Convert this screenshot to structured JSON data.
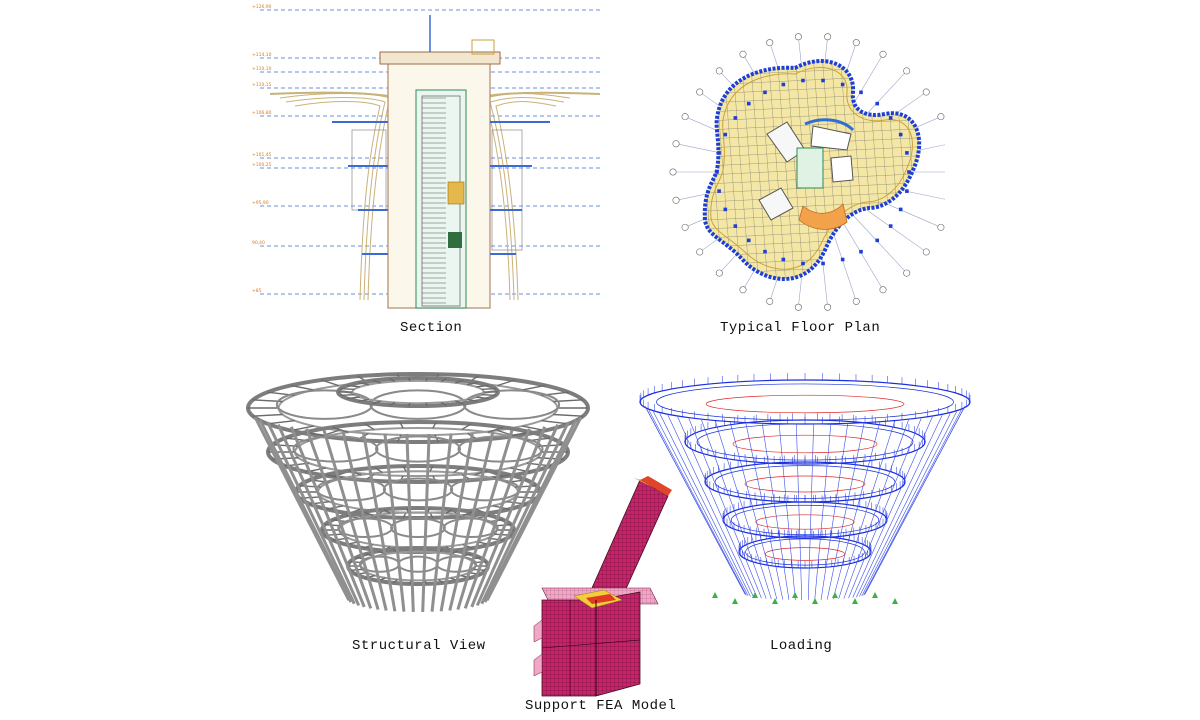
{
  "figure": {
    "captions": {
      "section": "Section",
      "floor_plan": "Typical Floor Plan",
      "structural_view": "Structural View",
      "loading": "Loading",
      "fea": "Support FEA Model"
    },
    "section_levels": [
      "+126,90",
      "+114,10",
      "+110,10",
      "+110,15",
      "+106,80",
      "+101,45",
      "+100,25",
      "+95,90",
      "90,40",
      "+85"
    ],
    "colors": {
      "drawing_line": "#c9b27a",
      "level_line": "#3d6bd1",
      "elevation_text": "#d97a1c",
      "plan_outline": "#1e3fd6",
      "plan_fill": "#f4e7a6",
      "structure": "#8c8c8c",
      "loading_mesh": "#1a2fe0",
      "loading_load": "#e0282b",
      "fea_mesh": "#c8236b",
      "support_marker": "#3cb043"
    }
  }
}
